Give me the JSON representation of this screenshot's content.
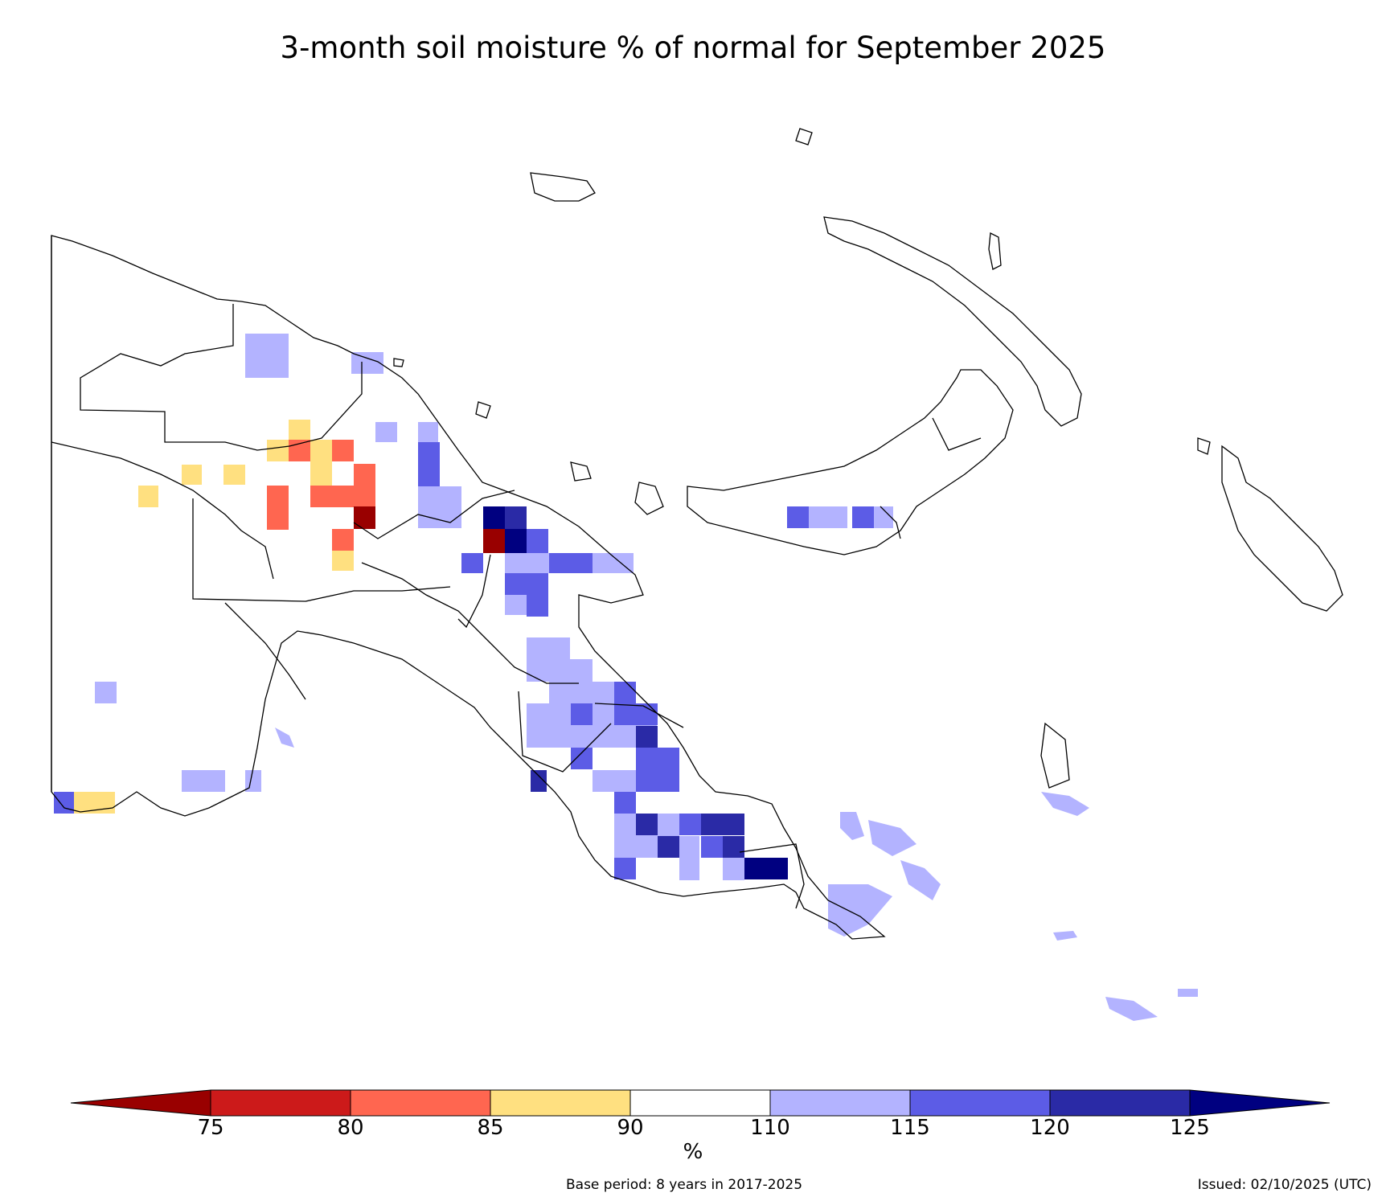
{
  "title": "3-month soil moisture % of normal for September 2025",
  "colorbar": {
    "ticks": [
      "75",
      "80",
      "85",
      "90",
      "110",
      "115",
      "120",
      "125"
    ],
    "unit": "%",
    "bins": [
      {
        "range": "<75",
        "color": "#990000"
      },
      {
        "range": "75-80",
        "color": "#cc1a1a"
      },
      {
        "range": "80-85",
        "color": "#ff6650"
      },
      {
        "range": "85-90",
        "color": "#ffe080"
      },
      {
        "range": "90-110",
        "color": "#ffffff"
      },
      {
        "range": "110-115",
        "color": "#b3b3ff"
      },
      {
        "range": "115-120",
        "color": "#5c5ce6"
      },
      {
        "range": "120-125",
        "color": "#2a2aa6"
      },
      {
        "range": ">125",
        "color": "#000080"
      }
    ]
  },
  "footer": {
    "base_period": "Base period: 8 years in 2017-2025",
    "issued": "Issued: 02/10/2025 (UTC)"
  }
}
